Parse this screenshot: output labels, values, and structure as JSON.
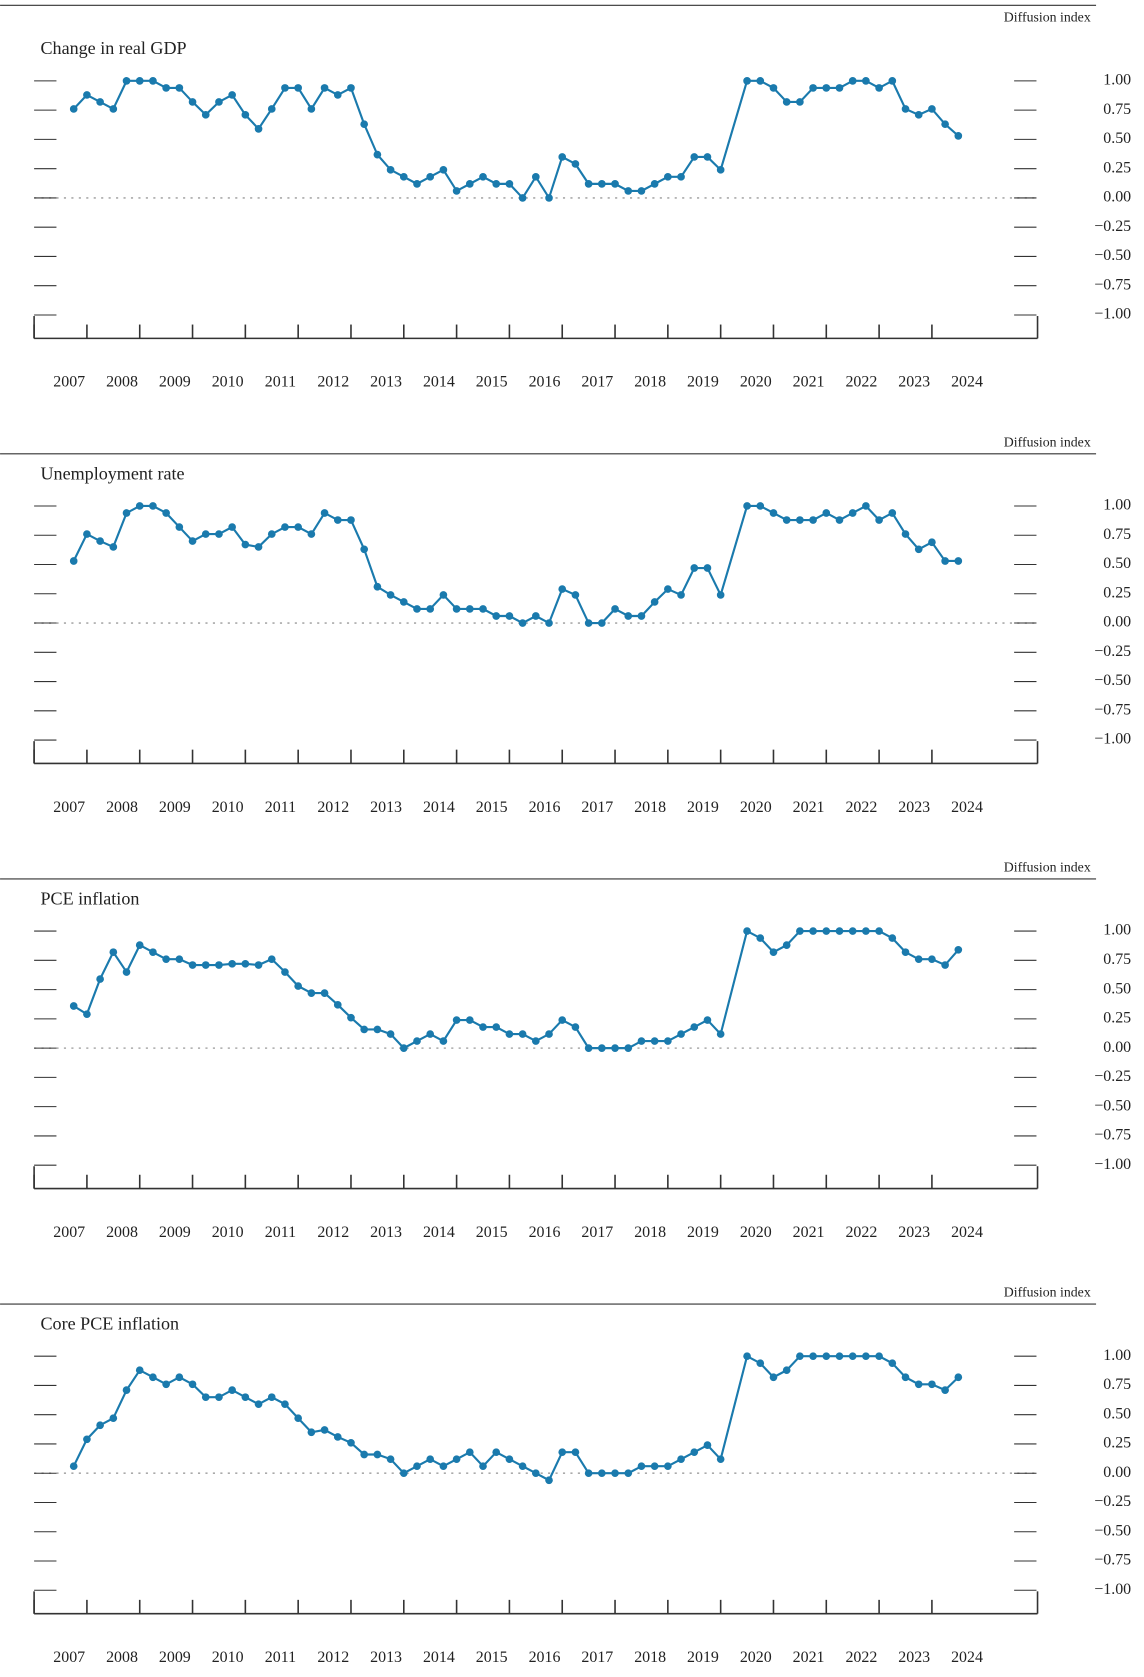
{
  "chart_data": [
    {
      "type": "line",
      "title": "Change in real GDP",
      "y_axis_label": "Diffusion index",
      "color": "#1a7aad",
      "x": [
        2007.75,
        2008,
        2008.25,
        2008.5,
        2008.75,
        2009,
        2009.25,
        2009.5,
        2009.75,
        2010,
        2010.25,
        2010.5,
        2010.75,
        2011,
        2011.25,
        2011.5,
        2011.75,
        2012,
        2012.25,
        2012.5,
        2012.75,
        2013,
        2013.25,
        2013.5,
        2013.75,
        2014,
        2014.25,
        2014.5,
        2014.75,
        2015,
        2015.25,
        2015.5,
        2015.75,
        2016,
        2016.25,
        2016.5,
        2016.75,
        2017,
        2017.25,
        2017.5,
        2017.75,
        2018,
        2018.25,
        2018.5,
        2018.75,
        2019,
        2019.25,
        2019.5,
        2019.75,
        2020,
        2020.5,
        2020.75,
        2021,
        2021.25,
        2021.5,
        2021.75,
        2022,
        2022.25,
        2022.5,
        2022.75,
        2023,
        2023.25,
        2023.5,
        2023.75,
        2024,
        2024.25,
        2024.5
      ],
      "values": [
        0.76,
        0.88,
        0.82,
        0.76,
        1,
        1,
        1,
        0.94,
        0.94,
        0.82,
        0.71,
        0.82,
        0.88,
        0.71,
        0.59,
        0.76,
        0.94,
        0.94,
        0.76,
        0.94,
        0.88,
        0.94,
        0.63,
        0.37,
        0.24,
        0.18,
        0.12,
        0.18,
        0.24,
        0.06,
        0.12,
        0.18,
        0.12,
        0.12,
        0,
        0.18,
        0,
        0.35,
        0.29,
        0.12,
        0.12,
        0.12,
        0.06,
        0.06,
        0.12,
        0.18,
        0.18,
        0.35,
        0.35,
        0.24,
        1,
        1,
        0.94,
        0.82,
        0.82,
        0.94,
        0.94,
        0.94,
        1,
        1,
        0.94,
        1,
        0.76,
        0.71,
        0.76,
        0.63,
        0.53
      ],
      "xlim": [
        2007,
        2026
      ],
      "xticks": [
        2007,
        2008,
        2009,
        2010,
        2011,
        2012,
        2013,
        2014,
        2015,
        2016,
        2017,
        2018,
        2019,
        2020,
        2021,
        2022,
        2023,
        2024
      ],
      "ylim": [
        -1,
        1
      ],
      "yticks": [
        {
          "value": 1,
          "label": "1.00"
        },
        {
          "value": 0.75,
          "label": "0.75"
        },
        {
          "value": 0.5,
          "label": "0.50"
        },
        {
          "value": 0.25,
          "label": "0.25"
        },
        {
          "value": 0,
          "label": "0.00"
        },
        {
          "value": -0.25,
          "label": "−0.25"
        },
        {
          "value": -0.5,
          "label": "−0.50"
        },
        {
          "value": -0.75,
          "label": "−0.75"
        },
        {
          "value": -1,
          "label": "−1.00"
        }
      ]
    },
    {
      "type": "line",
      "title": "Unemployment rate",
      "y_axis_label": "Diffusion index",
      "color": "#1a7aad",
      "x": [
        2007.75,
        2008,
        2008.25,
        2008.5,
        2008.75,
        2009,
        2009.25,
        2009.5,
        2009.75,
        2010,
        2010.25,
        2010.5,
        2010.75,
        2011,
        2011.25,
        2011.5,
        2011.75,
        2012,
        2012.25,
        2012.5,
        2012.75,
        2013,
        2013.25,
        2013.5,
        2013.75,
        2014,
        2014.25,
        2014.5,
        2014.75,
        2015,
        2015.25,
        2015.5,
        2015.75,
        2016,
        2016.25,
        2016.5,
        2016.75,
        2017,
        2017.25,
        2017.5,
        2017.75,
        2018,
        2018.25,
        2018.5,
        2018.75,
        2019,
        2019.25,
        2019.5,
        2019.75,
        2020,
        2020.5,
        2020.75,
        2021,
        2021.25,
        2021.5,
        2021.75,
        2022,
        2022.25,
        2022.5,
        2022.75,
        2023,
        2023.25,
        2023.5,
        2023.75,
        2024,
        2024.25,
        2024.5
      ],
      "values": [
        0.53,
        0.76,
        0.7,
        0.65,
        0.94,
        1,
        1,
        0.94,
        0.82,
        0.7,
        0.76,
        0.76,
        0.82,
        0.67,
        0.65,
        0.76,
        0.82,
        0.82,
        0.76,
        0.94,
        0.88,
        0.88,
        0.63,
        0.31,
        0.24,
        0.18,
        0.12,
        0.12,
        0.24,
        0.12,
        0.12,
        0.12,
        0.06,
        0.06,
        0,
        0.06,
        0,
        0.29,
        0.24,
        0,
        0,
        0.12,
        0.06,
        0.06,
        0.18,
        0.29,
        0.24,
        0.47,
        0.47,
        0.24,
        1,
        1,
        0.94,
        0.88,
        0.88,
        0.88,
        0.94,
        0.88,
        0.94,
        1,
        0.88,
        0.94,
        0.76,
        0.63,
        0.69,
        0.53,
        0.53
      ],
      "xlim": [
        2007,
        2026
      ],
      "xticks": [
        2007,
        2008,
        2009,
        2010,
        2011,
        2012,
        2013,
        2014,
        2015,
        2016,
        2017,
        2018,
        2019,
        2020,
        2021,
        2022,
        2023,
        2024
      ],
      "ylim": [
        -1,
        1
      ],
      "yticks": [
        {
          "value": 1,
          "label": "1.00"
        },
        {
          "value": 0.75,
          "label": "0.75"
        },
        {
          "value": 0.5,
          "label": "0.50"
        },
        {
          "value": 0.25,
          "label": "0.25"
        },
        {
          "value": 0,
          "label": "0.00"
        },
        {
          "value": -0.25,
          "label": "−0.25"
        },
        {
          "value": -0.5,
          "label": "−0.50"
        },
        {
          "value": -0.75,
          "label": "−0.75"
        },
        {
          "value": -1,
          "label": "−1.00"
        }
      ]
    },
    {
      "type": "line",
      "title": "PCE inflation",
      "y_axis_label": "Diffusion index",
      "color": "#1a7aad",
      "x": [
        2007.75,
        2008,
        2008.25,
        2008.5,
        2008.75,
        2009,
        2009.25,
        2009.5,
        2009.75,
        2010,
        2010.25,
        2010.5,
        2010.75,
        2011,
        2011.25,
        2011.5,
        2011.75,
        2012,
        2012.25,
        2012.5,
        2012.75,
        2013,
        2013.25,
        2013.5,
        2013.75,
        2014,
        2014.25,
        2014.5,
        2014.75,
        2015,
        2015.25,
        2015.5,
        2015.75,
        2016,
        2016.25,
        2016.5,
        2016.75,
        2017,
        2017.25,
        2017.5,
        2017.75,
        2018,
        2018.25,
        2018.5,
        2018.75,
        2019,
        2019.25,
        2019.5,
        2019.75,
        2020,
        2020.5,
        2020.75,
        2021,
        2021.25,
        2021.5,
        2021.75,
        2022,
        2022.25,
        2022.5,
        2022.75,
        2023,
        2023.25,
        2023.5,
        2023.75,
        2024,
        2024.25,
        2024.5
      ],
      "values": [
        0.36,
        0.29,
        0.59,
        0.82,
        0.65,
        0.88,
        0.82,
        0.76,
        0.76,
        0.71,
        0.71,
        0.71,
        0.72,
        0.72,
        0.71,
        0.76,
        0.65,
        0.53,
        0.47,
        0.47,
        0.37,
        0.26,
        0.16,
        0.16,
        0.12,
        0,
        0.06,
        0.12,
        0.06,
        0.24,
        0.24,
        0.18,
        0.18,
        0.12,
        0.12,
        0.06,
        0.12,
        0.24,
        0.18,
        0,
        0,
        0,
        0,
        0.06,
        0.06,
        0.06,
        0.12,
        0.18,
        0.24,
        0.12,
        1,
        0.94,
        0.82,
        0.88,
        1,
        1,
        1,
        1,
        1,
        1,
        1,
        0.94,
        0.82,
        0.76,
        0.76,
        0.71,
        0.84
      ],
      "xlim": [
        2007,
        2026
      ],
      "xticks": [
        2007,
        2008,
        2009,
        2010,
        2011,
        2012,
        2013,
        2014,
        2015,
        2016,
        2017,
        2018,
        2019,
        2020,
        2021,
        2022,
        2023,
        2024
      ],
      "ylim": [
        -1,
        1
      ],
      "yticks": [
        {
          "value": 1,
          "label": "1.00"
        },
        {
          "value": 0.75,
          "label": "0.75"
        },
        {
          "value": 0.5,
          "label": "0.50"
        },
        {
          "value": 0.25,
          "label": "0.25"
        },
        {
          "value": 0,
          "label": "0.00"
        },
        {
          "value": -0.25,
          "label": "−0.25"
        },
        {
          "value": -0.5,
          "label": "−0.50"
        },
        {
          "value": -0.75,
          "label": "−0.75"
        },
        {
          "value": -1,
          "label": "−1.00"
        }
      ]
    },
    {
      "type": "line",
      "title": "Core PCE inflation",
      "y_axis_label": "Diffusion index",
      "color": "#1a7aad",
      "x": [
        2007.75,
        2008,
        2008.25,
        2008.5,
        2008.75,
        2009,
        2009.25,
        2009.5,
        2009.75,
        2010,
        2010.25,
        2010.5,
        2010.75,
        2011,
        2011.25,
        2011.5,
        2011.75,
        2012,
        2012.25,
        2012.5,
        2012.75,
        2013,
        2013.25,
        2013.5,
        2013.75,
        2014,
        2014.25,
        2014.5,
        2014.75,
        2015,
        2015.25,
        2015.5,
        2015.75,
        2016,
        2016.25,
        2016.5,
        2016.75,
        2017,
        2017.25,
        2017.5,
        2017.75,
        2018,
        2018.25,
        2018.5,
        2018.75,
        2019,
        2019.25,
        2019.5,
        2019.75,
        2020,
        2020.5,
        2020.75,
        2021,
        2021.25,
        2021.5,
        2021.75,
        2022,
        2022.25,
        2022.5,
        2022.75,
        2023,
        2023.25,
        2023.5,
        2023.75,
        2024,
        2024.25,
        2024.5
      ],
      "values": [
        0.06,
        0.29,
        0.41,
        0.47,
        0.71,
        0.88,
        0.82,
        0.76,
        0.82,
        0.76,
        0.65,
        0.65,
        0.71,
        0.65,
        0.59,
        0.65,
        0.59,
        0.47,
        0.35,
        0.37,
        0.31,
        0.26,
        0.16,
        0.16,
        0.12,
        0,
        0.06,
        0.12,
        0.06,
        0.12,
        0.18,
        0.06,
        0.18,
        0.12,
        0.06,
        0,
        -0.06,
        0.18,
        0.18,
        0,
        0,
        0,
        0,
        0.06,
        0.06,
        0.06,
        0.12,
        0.18,
        0.24,
        0.12,
        1,
        0.94,
        0.82,
        0.88,
        1,
        1,
        1,
        1,
        1,
        1,
        1,
        0.94,
        0.82,
        0.76,
        0.76,
        0.71,
        0.82
      ],
      "xlim": [
        2007,
        2026
      ],
      "xticks": [
        2007,
        2008,
        2009,
        2010,
        2011,
        2012,
        2013,
        2014,
        2015,
        2016,
        2017,
        2018,
        2019,
        2020,
        2021,
        2022,
        2023,
        2024
      ],
      "ylim": [
        -1,
        1
      ],
      "yticks": [
        {
          "value": 1,
          "label": "1.00"
        },
        {
          "value": 0.75,
          "label": "0.75"
        },
        {
          "value": 0.5,
          "label": "0.50"
        },
        {
          "value": 0.25,
          "label": "0.25"
        },
        {
          "value": 0,
          "label": "0.00"
        },
        {
          "value": -0.25,
          "label": "−0.25"
        },
        {
          "value": -0.5,
          "label": "−0.50"
        },
        {
          "value": -0.75,
          "label": "−0.75"
        },
        {
          "value": -1,
          "label": "−1.00"
        }
      ]
    }
  ]
}
